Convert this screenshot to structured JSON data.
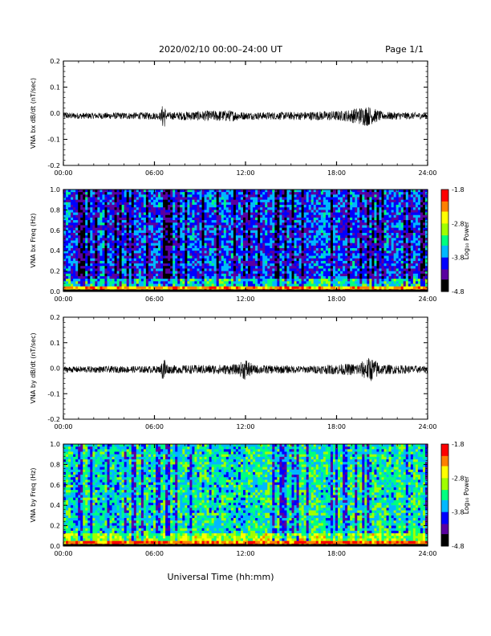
{
  "header": {
    "title": "2020/02/10  00:00–24:00 UT",
    "page": "Page 1/1"
  },
  "footer": {
    "xlabel": "Universal Time (hh:mm)"
  },
  "chart_data": [
    {
      "type": "line",
      "ylabel": "VNA bx dB/dt (nT/sec)",
      "xlim": [
        0,
        24
      ],
      "ylim": [
        -0.2,
        0.2
      ],
      "x_ticks": [
        "00:00",
        "06:00",
        "12:00",
        "18:00",
        "24:00"
      ],
      "y_ticks": [
        "0.2",
        "0.1",
        "0.0",
        "-0.1",
        "-0.2"
      ],
      "baseline": -0.01,
      "typical_amplitude": 0.012,
      "envelope": [
        {
          "t": 0.0,
          "amp": 0.012
        },
        {
          "t": 2.0,
          "amp": 0.012
        },
        {
          "t": 6.4,
          "amp": 0.014
        },
        {
          "t": 6.6,
          "amp": 0.06
        },
        {
          "t": 6.8,
          "amp": 0.014
        },
        {
          "t": 9.5,
          "amp": 0.02
        },
        {
          "t": 11.0,
          "amp": 0.022
        },
        {
          "t": 12.0,
          "amp": 0.014
        },
        {
          "t": 15.0,
          "amp": 0.015
        },
        {
          "t": 18.5,
          "amp": 0.02
        },
        {
          "t": 20.0,
          "amp": 0.04
        },
        {
          "t": 21.0,
          "amp": 0.016
        },
        {
          "t": 24.0,
          "amp": 0.012
        }
      ]
    },
    {
      "type": "heatmap",
      "ylabel": "VNA bx Freq (Hz)",
      "xlim": [
        0,
        24
      ],
      "ylim": [
        0.0,
        1.0
      ],
      "x_ticks": [
        "00:00",
        "06:00",
        "12:00",
        "18:00",
        "24:00"
      ],
      "y_ticks": [
        "1.0",
        "0.8",
        "0.6",
        "0.4",
        "0.2",
        "0.0"
      ],
      "colorbar": {
        "label": "Log₁₀ Power",
        "range": [
          -4.8,
          -1.8
        ],
        "ticks": [
          "-1.8",
          "-2.8",
          "-3.8",
          "-4.8"
        ],
        "colors": [
          "#000000",
          "#5a00a0",
          "#0000ff",
          "#00b8ff",
          "#00ff80",
          "#a0ff00",
          "#ffff00",
          "#ff8000",
          "#ff0000"
        ]
      },
      "typical_level": -3.9,
      "low_freq_level": -2.6
    },
    {
      "type": "line",
      "ylabel": "VNA by dB/dt (nT/sec)",
      "xlim": [
        0,
        24
      ],
      "ylim": [
        -0.2,
        0.2
      ],
      "x_ticks": [
        "00:00",
        "06:00",
        "12:00",
        "18:00",
        "24:00"
      ],
      "y_ticks": [
        "0.2",
        "0.1",
        "0.0",
        "-0.1",
        "-0.2"
      ],
      "baseline": -0.005,
      "typical_amplitude": 0.012,
      "envelope": [
        {
          "t": 0.0,
          "amp": 0.012
        },
        {
          "t": 6.4,
          "amp": 0.014
        },
        {
          "t": 6.6,
          "amp": 0.06
        },
        {
          "t": 6.9,
          "amp": 0.016
        },
        {
          "t": 11.5,
          "amp": 0.02
        },
        {
          "t": 12.0,
          "amp": 0.045
        },
        {
          "t": 12.5,
          "amp": 0.018
        },
        {
          "t": 16.0,
          "amp": 0.014
        },
        {
          "t": 19.5,
          "amp": 0.025
        },
        {
          "t": 20.2,
          "amp": 0.05
        },
        {
          "t": 21.0,
          "amp": 0.02
        },
        {
          "t": 24.0,
          "amp": 0.013
        }
      ]
    },
    {
      "type": "heatmap",
      "ylabel": "VNA by Freq (Hz)",
      "xlim": [
        0,
        24
      ],
      "ylim": [
        0.0,
        1.0
      ],
      "x_ticks": [
        "00:00",
        "06:00",
        "12:00",
        "18:00",
        "24:00"
      ],
      "y_ticks": [
        "1.0",
        "0.8",
        "0.6",
        "0.4",
        "0.2",
        "0.0"
      ],
      "colorbar": {
        "label": "Log₁₀ Power",
        "range": [
          -4.8,
          -1.8
        ],
        "ticks": [
          "-1.8",
          "-2.8",
          "-3.8",
          "-4.8"
        ],
        "colors": [
          "#000000",
          "#5a00a0",
          "#0000ff",
          "#00b8ff",
          "#00ff80",
          "#a0ff00",
          "#ffff00",
          "#ff8000",
          "#ff0000"
        ]
      },
      "typical_level": -3.4,
      "low_freq_level": -2.4
    }
  ]
}
